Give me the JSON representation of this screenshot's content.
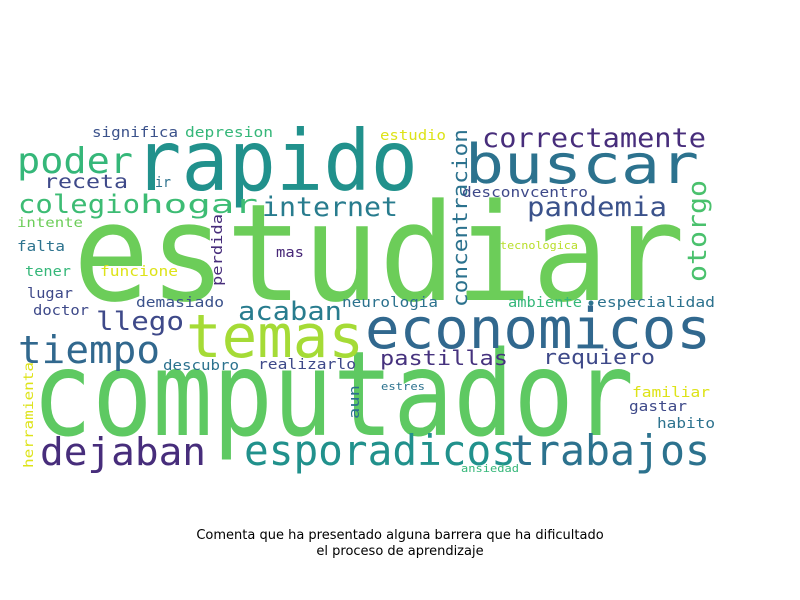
{
  "caption": {
    "line1": "Comenta que ha presentado alguna barrera que ha dificultado",
    "line2": "el proceso de aprendizaje"
  },
  "colors": {
    "light_green": "#6ccd59",
    "teal": "#21918c",
    "dark_teal": "#2c728e",
    "dark_blue": "#3b528b",
    "purple": "#472d7b",
    "yellow_green": "#a5db36",
    "yellow": "#dde318",
    "mid_green": "#35b779"
  },
  "words": [
    {
      "text": "estudiar",
      "color": "#6ccd59"
    },
    {
      "text": "computador",
      "color": "#5ec962"
    },
    {
      "text": "rapido",
      "color": "#21918c"
    },
    {
      "text": "buscar",
      "color": "#2c728e"
    },
    {
      "text": "temas",
      "color": "#a5db36"
    },
    {
      "text": "economicos",
      "color": "#31688e"
    },
    {
      "text": "esporadicos",
      "color": "#21918c"
    },
    {
      "text": "trabajos",
      "color": "#2c728e"
    },
    {
      "text": "dejaban",
      "color": "#472d7b"
    },
    {
      "text": "tiempo",
      "color": "#31688e"
    },
    {
      "text": "poder",
      "color": "#35b779"
    },
    {
      "text": "correctamente",
      "color": "#472d7b"
    },
    {
      "text": "pandemia",
      "color": "#3b528b"
    },
    {
      "text": "internet",
      "color": "#287c8e"
    },
    {
      "text": "colegio",
      "color": "#3dbc74"
    },
    {
      "text": "hogar",
      "color": "#3dbc74"
    },
    {
      "text": "acaban",
      "color": "#287c8e"
    },
    {
      "text": "llego",
      "color": "#3e4989"
    },
    {
      "text": "pastillas",
      "color": "#46327e"
    },
    {
      "text": "requiero",
      "color": "#3e4989"
    },
    {
      "text": "receta",
      "color": "#3e4989"
    },
    {
      "text": "otorgo",
      "color": "#4ac16d"
    },
    {
      "text": "concentracion",
      "color": "#2c728e"
    },
    {
      "text": "significa",
      "color": "#3b528b"
    },
    {
      "text": "depresion",
      "color": "#35b779"
    },
    {
      "text": "estudio",
      "color": "#dde318"
    },
    {
      "text": "desconvcentro",
      "color": "#3e4989"
    },
    {
      "text": "ir",
      "color": "#2c728e"
    },
    {
      "text": "intente",
      "color": "#6ccd59"
    },
    {
      "text": "perdida",
      "color": "#472d7b"
    },
    {
      "text": "falta",
      "color": "#2c728e"
    },
    {
      "text": "mas",
      "color": "#482878"
    },
    {
      "text": "tecnologica",
      "color": "#b8de29"
    },
    {
      "text": "tener",
      "color": "#35b779"
    },
    {
      "text": "funcione",
      "color": "#dde318"
    },
    {
      "text": "lugar",
      "color": "#3e4989"
    },
    {
      "text": "demasiado",
      "color": "#3b528b"
    },
    {
      "text": "neurologia",
      "color": "#2c728e"
    },
    {
      "text": "ambiente",
      "color": "#35b779"
    },
    {
      "text": "especialidad",
      "color": "#2c728e"
    },
    {
      "text": "doctor",
      "color": "#3e4989"
    },
    {
      "text": "descubro",
      "color": "#2c728e"
    },
    {
      "text": "realizarlo",
      "color": "#3e4989"
    },
    {
      "text": "herramienta",
      "color": "#dde318"
    },
    {
      "text": "aun",
      "color": "#2c728e"
    },
    {
      "text": "estres",
      "color": "#2c728e"
    },
    {
      "text": "familiar",
      "color": "#dde318"
    },
    {
      "text": "gastar",
      "color": "#3e4989"
    },
    {
      "text": "habito",
      "color": "#2c728e"
    },
    {
      "text": "ansiedad",
      "color": "#35b779"
    }
  ]
}
